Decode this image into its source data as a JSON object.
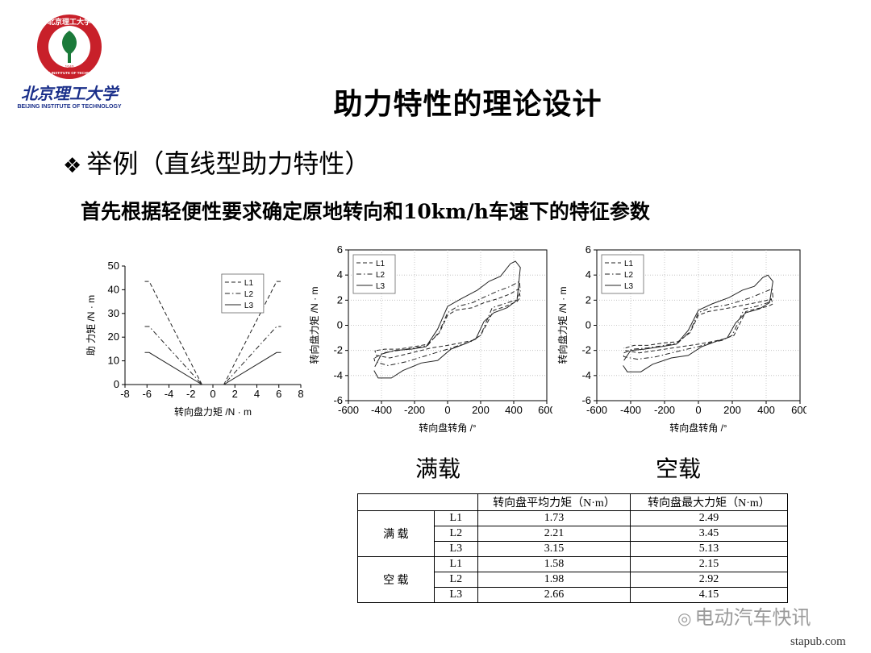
{
  "logo": {
    "arc_text": "北京理工大学",
    "cn_name": "北京理工大学",
    "en_name": "BEIJING INSTITUTE OF TECHNOLOGY",
    "ring_text": "BEIJING INSTITUTE OF TECHNOLOGY",
    "year": "1940"
  },
  "title": "助力特性的理论设计",
  "bullet": {
    "mark": "❖",
    "text": "举例（直线型助力特性）"
  },
  "subtitle": "首先根据轻便性要求确定原地转向和10km/h车速下的特征参数",
  "labels": {
    "full_load": "满载",
    "empty_load": "空载"
  },
  "colors": {
    "line": "#222222",
    "logo_red": "#c8202a",
    "logo_green": "#1b7a3a",
    "logo_blue": "#1a2f8a"
  },
  "chart_data": [
    {
      "type": "line",
      "xlabel": "转向盘力矩 /N · m",
      "ylabel": "助 力矩 /N · m",
      "xlim": [
        -8,
        8
      ],
      "ylim": [
        0,
        50
      ],
      "xticks": [
        -8,
        -6,
        -4,
        -2,
        0,
        2,
        4,
        6,
        8
      ],
      "yticks": [
        0,
        10,
        20,
        30,
        40,
        50
      ],
      "legend": "top-right",
      "series": [
        {
          "name": "L1",
          "style": "dash",
          "points": [
            [
              -6.2,
              43.5
            ],
            [
              -5.8,
              43.5
            ],
            [
              -1,
              0
            ],
            [
              1,
              0
            ],
            [
              5.8,
              43.5
            ],
            [
              6.2,
              43.5
            ]
          ]
        },
        {
          "name": "L2",
          "style": "dashdot",
          "points": [
            [
              -6.2,
              24.5
            ],
            [
              -5.8,
              24.5
            ],
            [
              -1,
              0
            ],
            [
              1,
              0
            ],
            [
              5.8,
              24.5
            ],
            [
              6.2,
              24.5
            ]
          ]
        },
        {
          "name": "L3",
          "style": "solid",
          "points": [
            [
              -6.2,
              13.5
            ],
            [
              -5.8,
              13.5
            ],
            [
              -1,
              0
            ],
            [
              1,
              0
            ],
            [
              5.8,
              13.5
            ],
            [
              6.2,
              13.5
            ]
          ]
        }
      ]
    },
    {
      "type": "line",
      "xlabel": "转向盘转角 /°",
      "ylabel": "转向盘力矩 /N · m",
      "xlim": [
        -600,
        600
      ],
      "ylim": [
        -6,
        6
      ],
      "xticks": [
        -600,
        -400,
        -200,
        0,
        200,
        400,
        600
      ],
      "yticks": [
        -6,
        -4,
        -2,
        0,
        2,
        4,
        6
      ],
      "legend": "top-left",
      "series": [
        {
          "name": "L1",
          "style": "dash",
          "points": [
            [
              -430,
              -2
            ],
            [
              -380,
              -1.9
            ],
            [
              -300,
              -1.9
            ],
            [
              -200,
              -1.7
            ],
            [
              -120,
              -1.5
            ],
            [
              -50,
              -0.6
            ],
            [
              0,
              0.8
            ],
            [
              50,
              1.2
            ],
            [
              150,
              1.4
            ],
            [
              220,
              1.8
            ],
            [
              300,
              2.1
            ],
            [
              380,
              2.5
            ],
            [
              430,
              2.9
            ],
            [
              440,
              2.2
            ],
            [
              420,
              1.9
            ],
            [
              350,
              1.5
            ],
            [
              280,
              1.2
            ],
            [
              200,
              -0.8
            ],
            [
              150,
              -1.2
            ],
            [
              80,
              -1.4
            ],
            [
              0,
              -1.6
            ],
            [
              -100,
              -1.8
            ],
            [
              -250,
              -2.3
            ],
            [
              -350,
              -2.6
            ],
            [
              -430,
              -2.4
            ],
            [
              -440,
              -2
            ]
          ]
        },
        {
          "name": "L2",
          "style": "dashdot",
          "points": [
            [
              -440,
              -2.6
            ],
            [
              -390,
              -2.2
            ],
            [
              -300,
              -2.0
            ],
            [
              -200,
              -1.8
            ],
            [
              -120,
              -1.6
            ],
            [
              -50,
              -0.5
            ],
            [
              0,
              1.0
            ],
            [
              60,
              1.5
            ],
            [
              150,
              1.8
            ],
            [
              230,
              2.3
            ],
            [
              300,
              2.7
            ],
            [
              380,
              3.1
            ],
            [
              435,
              3.5
            ],
            [
              440,
              2.6
            ],
            [
              410,
              2.0
            ],
            [
              340,
              1.7
            ],
            [
              270,
              1.4
            ],
            [
              200,
              -0.8
            ],
            [
              140,
              -1.3
            ],
            [
              70,
              -1.6
            ],
            [
              0,
              -1.9
            ],
            [
              -100,
              -2.3
            ],
            [
              -250,
              -2.9
            ],
            [
              -360,
              -3.2
            ],
            [
              -440,
              -2.9
            ],
            [
              -445,
              -2.6
            ]
          ]
        },
        {
          "name": "L3",
          "style": "solid",
          "points": [
            [
              -440,
              -3.3
            ],
            [
              -400,
              -2.3
            ],
            [
              -320,
              -2.0
            ],
            [
              -220,
              -1.9
            ],
            [
              -130,
              -1.7
            ],
            [
              -60,
              -0.3
            ],
            [
              0,
              1.5
            ],
            [
              80,
              2.1
            ],
            [
              180,
              2.8
            ],
            [
              250,
              3.5
            ],
            [
              320,
              3.9
            ],
            [
              380,
              4.9
            ],
            [
              410,
              5.1
            ],
            [
              440,
              4.6
            ],
            [
              420,
              2.0
            ],
            [
              360,
              1.4
            ],
            [
              280,
              1.0
            ],
            [
              220,
              0.3
            ],
            [
              170,
              -1.1
            ],
            [
              100,
              -1.5
            ],
            [
              20,
              -1.9
            ],
            [
              -60,
              -2.8
            ],
            [
              -160,
              -3.0
            ],
            [
              -270,
              -3.6
            ],
            [
              -340,
              -4.2
            ],
            [
              -420,
              -4.2
            ],
            [
              -445,
              -3.6
            ]
          ]
        }
      ]
    },
    {
      "type": "line",
      "xlabel": "转向盘转角 /°",
      "ylabel": "转向盘力矩 /N · m",
      "xlim": [
        -600,
        600
      ],
      "ylim": [
        -6,
        6
      ],
      "xticks": [
        -600,
        -400,
        -200,
        0,
        200,
        400,
        600
      ],
      "yticks": [
        -6,
        -4,
        -2,
        0,
        2,
        4,
        6
      ],
      "legend": "top-left",
      "series": [
        {
          "name": "L1",
          "style": "dash",
          "points": [
            [
              -430,
              -1.8
            ],
            [
              -380,
              -1.6
            ],
            [
              -300,
              -1.6
            ],
            [
              -200,
              -1.4
            ],
            [
              -120,
              -1.3
            ],
            [
              -50,
              -0.6
            ],
            [
              0,
              0.8
            ],
            [
              60,
              1.1
            ],
            [
              150,
              1.3
            ],
            [
              230,
              1.5
            ],
            [
              300,
              1.7
            ],
            [
              380,
              1.9
            ],
            [
              430,
              2.1
            ],
            [
              440,
              1.7
            ],
            [
              410,
              1.5
            ],
            [
              340,
              1.3
            ],
            [
              280,
              1.1
            ],
            [
              210,
              -0.8
            ],
            [
              150,
              -1.1
            ],
            [
              80,
              -1.3
            ],
            [
              0,
              -1.5
            ],
            [
              -100,
              -1.7
            ],
            [
              -250,
              -2.0
            ],
            [
              -350,
              -2.2
            ],
            [
              -430,
              -2.0
            ],
            [
              -440,
              -1.8
            ]
          ]
        },
        {
          "name": "L2",
          "style": "dashdot",
          "points": [
            [
              -440,
              -2.2
            ],
            [
              -390,
              -1.9
            ],
            [
              -300,
              -1.8
            ],
            [
              -200,
              -1.6
            ],
            [
              -120,
              -1.4
            ],
            [
              -50,
              -0.5
            ],
            [
              0,
              1.0
            ],
            [
              70,
              1.4
            ],
            [
              160,
              1.6
            ],
            [
              240,
              1.9
            ],
            [
              310,
              2.2
            ],
            [
              380,
              2.6
            ],
            [
              435,
              2.9
            ],
            [
              440,
              2.2
            ],
            [
              410,
              1.8
            ],
            [
              340,
              1.5
            ],
            [
              270,
              1.3
            ],
            [
              200,
              -0.8
            ],
            [
              140,
              -1.2
            ],
            [
              70,
              -1.4
            ],
            [
              0,
              -1.7
            ],
            [
              -100,
              -2.0
            ],
            [
              -250,
              -2.5
            ],
            [
              -360,
              -2.7
            ],
            [
              -440,
              -2.5
            ],
            [
              -445,
              -2.2
            ]
          ]
        },
        {
          "name": "L3",
          "style": "solid",
          "points": [
            [
              -440,
              -2.8
            ],
            [
              -400,
              -2.0
            ],
            [
              -320,
              -1.9
            ],
            [
              -220,
              -1.7
            ],
            [
              -130,
              -1.5
            ],
            [
              -60,
              -0.4
            ],
            [
              0,
              1.2
            ],
            [
              80,
              1.7
            ],
            [
              180,
              2.2
            ],
            [
              260,
              2.8
            ],
            [
              330,
              3.1
            ],
            [
              380,
              3.8
            ],
            [
              410,
              4.0
            ],
            [
              440,
              3.5
            ],
            [
              420,
              1.8
            ],
            [
              360,
              1.3
            ],
            [
              280,
              1.0
            ],
            [
              220,
              0.2
            ],
            [
              170,
              -1.0
            ],
            [
              100,
              -1.3
            ],
            [
              20,
              -1.7
            ],
            [
              -60,
              -2.4
            ],
            [
              -160,
              -2.6
            ],
            [
              -270,
              -3.1
            ],
            [
              -340,
              -3.7
            ],
            [
              -420,
              -3.7
            ],
            [
              -445,
              -3.2
            ]
          ]
        }
      ]
    },
    {
      "type": "table",
      "header": [
        "",
        "",
        "转向盘平均力矩（N·m）",
        "转向盘最大力矩（N·m）"
      ],
      "groups": [
        {
          "name": "满 载",
          "rows": [
            [
              "L1",
              "1.73",
              "2.49"
            ],
            [
              "L2",
              "2.21",
              "3.45"
            ],
            [
              "L3",
              "3.15",
              "5.13"
            ]
          ]
        },
        {
          "name": "空 载",
          "rows": [
            [
              "L1",
              "1.58",
              "2.15"
            ],
            [
              "L2",
              "1.98",
              "2.92"
            ],
            [
              "L3",
              "2.66",
              "4.15"
            ]
          ]
        }
      ]
    }
  ],
  "watermark": "电动汽车快讯",
  "site": "stapub.com"
}
